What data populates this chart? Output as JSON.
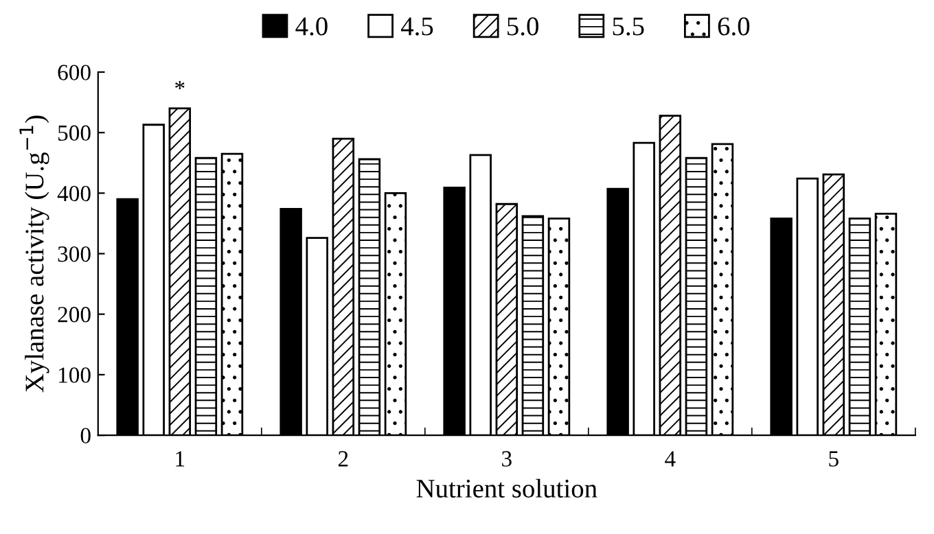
{
  "chart_data": {
    "type": "bar",
    "xlabel": "Nutrient solution",
    "ylabel": "Xylanase activity (U.g$^{−1}$)",
    "categories": [
      "1",
      "2",
      "3",
      "4",
      "5"
    ],
    "series": [
      {
        "name": "4.0",
        "color": "#000000",
        "values": [
          390,
          374,
          409,
          407,
          358
        ]
      },
      {
        "name": "4.5",
        "color": "#ffffff",
        "values": [
          513,
          326,
          463,
          483,
          424
        ]
      },
      {
        "name": "5.0",
        "color": "#ffffff",
        "values": [
          540,
          490,
          382,
          528,
          431
        ]
      },
      {
        "name": "5.5",
        "color": "#ffffff",
        "values": [
          458,
          456,
          362,
          458,
          358
        ]
      },
      {
        "name": "6.0",
        "color": "#ffffff",
        "values": [
          465,
          400,
          358,
          481,
          366
        ]
      }
    ],
    "ylim": [
      0,
      600
    ],
    "yticks": [
      0,
      100,
      200,
      300,
      400,
      500,
      600
    ],
    "grid": false,
    "legend": "top",
    "annotations": [
      {
        "text": "*",
        "x": "1",
        "y": 540
      }
    ]
  }
}
